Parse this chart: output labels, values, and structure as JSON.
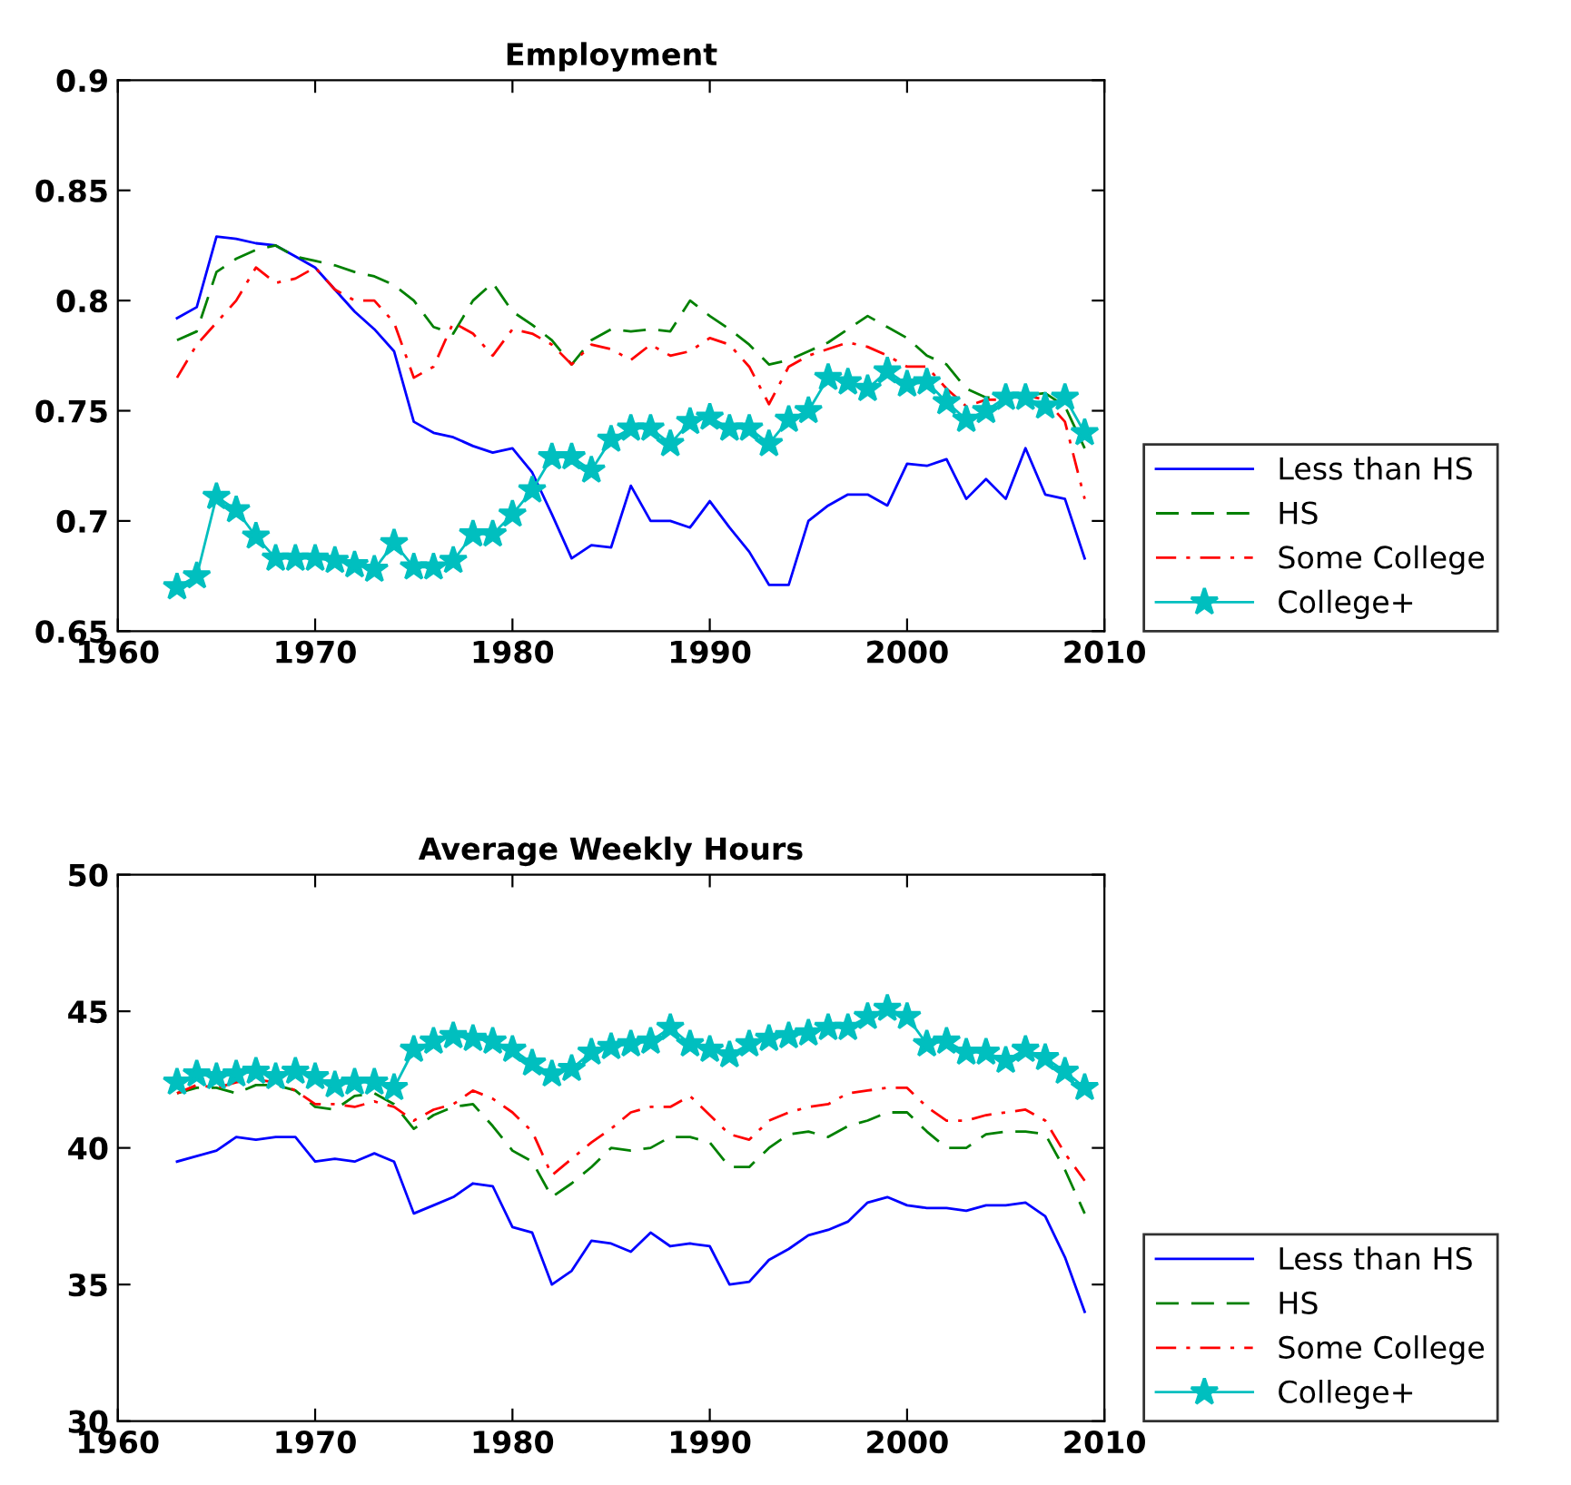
{
  "chart_data": [
    {
      "type": "line",
      "title": "Employment",
      "x": [
        1963,
        1964,
        1965,
        1966,
        1967,
        1968,
        1969,
        1970,
        1971,
        1972,
        1973,
        1974,
        1975,
        1976,
        1977,
        1978,
        1979,
        1980,
        1981,
        1982,
        1983,
        1984,
        1985,
        1986,
        1987,
        1988,
        1989,
        1990,
        1991,
        1992,
        1993,
        1994,
        1995,
        1996,
        1997,
        1998,
        1999,
        2000,
        2001,
        2002,
        2003,
        2004,
        2005,
        2006,
        2007,
        2008,
        2009
      ],
      "series": [
        {
          "name": "Less than HS",
          "color": "#0000ff",
          "line_style": "solid",
          "marker": "none",
          "values": [
            0.792,
            0.797,
            0.829,
            0.828,
            0.826,
            0.825,
            0.82,
            0.815,
            0.805,
            0.795,
            0.787,
            0.777,
            0.745,
            0.74,
            0.738,
            0.734,
            0.731,
            0.733,
            0.722,
            0.703,
            0.683,
            0.689,
            0.688,
            0.716,
            0.7,
            0.7,
            0.697,
            0.709,
            0.697,
            0.686,
            0.671,
            0.671,
            0.7,
            0.707,
            0.712,
            0.712,
            0.707,
            0.726,
            0.725,
            0.728,
            0.71,
            0.719,
            0.71,
            0.733,
            0.712,
            0.71,
            0.683
          ]
        },
        {
          "name": "HS",
          "color": "#008000",
          "line_style": "dashed",
          "marker": "none",
          "values": [
            0.782,
            0.786,
            0.813,
            0.819,
            0.823,
            0.825,
            0.82,
            0.818,
            0.816,
            0.813,
            0.811,
            0.807,
            0.8,
            0.788,
            0.785,
            0.8,
            0.808,
            0.795,
            0.789,
            0.782,
            0.771,
            0.782,
            0.787,
            0.786,
            0.787,
            0.786,
            0.8,
            0.793,
            0.787,
            0.78,
            0.771,
            0.773,
            0.777,
            0.781,
            0.787,
            0.793,
            0.788,
            0.783,
            0.775,
            0.771,
            0.76,
            0.756,
            0.756,
            0.757,
            0.758,
            0.752,
            0.733
          ]
        },
        {
          "name": "Some College",
          "color": "#ff0000",
          "line_style": "dashdot",
          "marker": "none",
          "values": [
            0.765,
            0.78,
            0.79,
            0.8,
            0.815,
            0.808,
            0.81,
            0.815,
            0.805,
            0.8,
            0.8,
            0.79,
            0.765,
            0.77,
            0.79,
            0.785,
            0.775,
            0.787,
            0.785,
            0.78,
            0.771,
            0.78,
            0.778,
            0.773,
            0.78,
            0.775,
            0.777,
            0.783,
            0.78,
            0.77,
            0.753,
            0.77,
            0.775,
            0.778,
            0.781,
            0.779,
            0.775,
            0.77,
            0.77,
            0.76,
            0.752,
            0.755,
            0.755,
            0.757,
            0.755,
            0.745,
            0.71
          ]
        },
        {
          "name": "College+",
          "color": "#00bfbf",
          "line_style": "solid",
          "marker": "star",
          "values": [
            0.67,
            0.675,
            0.711,
            0.705,
            0.693,
            0.683,
            0.683,
            0.683,
            0.682,
            0.68,
            0.678,
            0.69,
            0.679,
            0.679,
            0.682,
            0.694,
            0.694,
            0.703,
            0.714,
            0.729,
            0.729,
            0.723,
            0.737,
            0.742,
            0.742,
            0.735,
            0.745,
            0.747,
            0.742,
            0.742,
            0.735,
            0.746,
            0.75,
            0.765,
            0.763,
            0.76,
            0.768,
            0.762,
            0.763,
            0.754,
            0.746,
            0.75,
            0.756,
            0.756,
            0.752,
            0.756,
            0.74
          ]
        }
      ],
      "xlim": [
        1960,
        2010
      ],
      "xticks": [
        1960,
        1970,
        1980,
        1990,
        2000,
        2010
      ],
      "ylim": [
        0.65,
        0.9
      ],
      "yticks": [
        0.65,
        0.7,
        0.75,
        0.8,
        0.85,
        0.9
      ],
      "legend": "right",
      "grid": false
    },
    {
      "type": "line",
      "title": "Average Weekly Hours",
      "x": [
        1963,
        1964,
        1965,
        1966,
        1967,
        1968,
        1969,
        1970,
        1971,
        1972,
        1973,
        1974,
        1975,
        1976,
        1977,
        1978,
        1979,
        1980,
        1981,
        1982,
        1983,
        1984,
        1985,
        1986,
        1987,
        1988,
        1989,
        1990,
        1991,
        1992,
        1993,
        1994,
        1995,
        1996,
        1997,
        1998,
        1999,
        2000,
        2001,
        2002,
        2003,
        2004,
        2005,
        2006,
        2007,
        2008,
        2009
      ],
      "series": [
        {
          "name": "Less than HS",
          "color": "#0000ff",
          "line_style": "solid",
          "marker": "none",
          "values": [
            39.5,
            39.7,
            39.9,
            40.4,
            40.3,
            40.4,
            40.4,
            39.5,
            39.6,
            39.5,
            39.8,
            39.5,
            37.6,
            37.9,
            38.2,
            38.7,
            38.6,
            37.1,
            36.9,
            35.0,
            35.5,
            36.6,
            36.5,
            36.2,
            36.9,
            36.4,
            36.5,
            36.4,
            35.0,
            35.1,
            35.9,
            36.3,
            36.8,
            37.0,
            37.3,
            38.0,
            38.2,
            37.9,
            37.8,
            37.8,
            37.7,
            37.9,
            37.9,
            38.0,
            37.5,
            36.0,
            34.0
          ]
        },
        {
          "name": "HS",
          "color": "#008000",
          "line_style": "dashed",
          "marker": "none",
          "values": [
            42.0,
            42.2,
            42.2,
            42.0,
            42.3,
            42.3,
            42.1,
            41.5,
            41.4,
            41.9,
            42.0,
            41.6,
            40.7,
            41.2,
            41.5,
            41.6,
            40.8,
            39.9,
            39.5,
            38.2,
            38.7,
            39.3,
            40.0,
            39.9,
            40.0,
            40.4,
            40.4,
            40.2,
            39.3,
            39.3,
            40.0,
            40.5,
            40.6,
            40.4,
            40.8,
            41.0,
            41.3,
            41.3,
            40.6,
            40.0,
            40.0,
            40.5,
            40.6,
            40.6,
            40.5,
            39.2,
            37.6
          ]
        },
        {
          "name": "Some College",
          "color": "#ff0000",
          "line_style": "dashdot",
          "marker": "none",
          "values": [
            42.0,
            42.3,
            42.2,
            42.4,
            42.5,
            42.4,
            42.1,
            41.6,
            41.6,
            41.5,
            41.7,
            41.5,
            41.0,
            41.4,
            41.6,
            42.1,
            41.8,
            41.3,
            40.6,
            39.0,
            39.6,
            40.2,
            40.7,
            41.3,
            41.5,
            41.5,
            41.9,
            41.2,
            40.5,
            40.3,
            41.0,
            41.3,
            41.5,
            41.6,
            42.0,
            42.1,
            42.2,
            42.2,
            41.5,
            41.0,
            41.0,
            41.2,
            41.3,
            41.4,
            41.0,
            39.8,
            38.8
          ]
        },
        {
          "name": "College+",
          "color": "#00bfbf",
          "line_style": "solid",
          "marker": "star",
          "values": [
            42.4,
            42.7,
            42.6,
            42.7,
            42.8,
            42.6,
            42.8,
            42.6,
            42.3,
            42.4,
            42.4,
            42.2,
            43.6,
            43.9,
            44.1,
            44.0,
            43.9,
            43.6,
            43.1,
            42.7,
            42.9,
            43.5,
            43.7,
            43.8,
            43.9,
            44.4,
            43.8,
            43.6,
            43.4,
            43.8,
            44.0,
            44.1,
            44.2,
            44.4,
            44.4,
            44.8,
            45.1,
            44.8,
            43.8,
            43.9,
            43.5,
            43.5,
            43.2,
            43.6,
            43.3,
            42.8,
            42.2
          ]
        }
      ],
      "xlim": [
        1960,
        2010
      ],
      "xticks": [
        1960,
        1970,
        1980,
        1990,
        2000,
        2010
      ],
      "ylim": [
        30,
        50
      ],
      "yticks": [
        30,
        35,
        40,
        45,
        50
      ],
      "legend": "right",
      "grid": false
    }
  ]
}
